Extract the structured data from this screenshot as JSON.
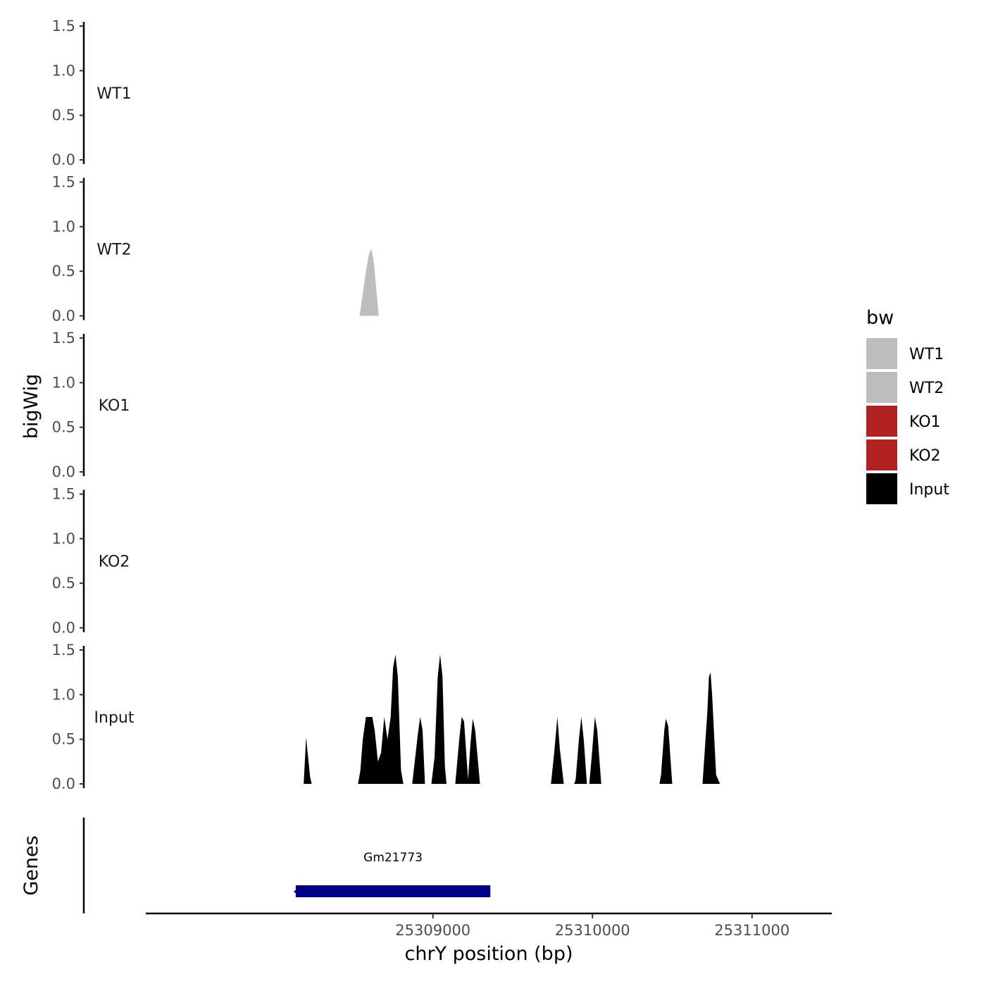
{
  "chart_data": {
    "type": "area",
    "ylabel": "bigWig",
    "xlabel": "chrY position (bp)",
    "genes_label": "Genes",
    "xlim": [
      25307200,
      25311500
    ],
    "x_ticks": [
      25309000,
      25310000,
      25311000
    ],
    "ylim": [
      0,
      1.5
    ],
    "y_ticks": [
      "0.0",
      "0.5",
      "1.0",
      "1.5"
    ],
    "legend": {
      "title": "bw",
      "entries": [
        {
          "label": "WT1",
          "color": "#bebebe"
        },
        {
          "label": "WT2",
          "color": "#bebebe"
        },
        {
          "label": "KO1",
          "color": "#b22222"
        },
        {
          "label": "KO2",
          "color": "#b22222"
        },
        {
          "label": "Input",
          "color": "#000000"
        }
      ]
    },
    "tracks": [
      {
        "name": "WT1",
        "color": "#bebebe",
        "peaks": []
      },
      {
        "name": "WT2",
        "color": "#bebebe",
        "peaks": [
          [
            [
              25308540,
              0
            ],
            [
              25308580,
              0.5
            ],
            [
              25308600,
              0.7
            ],
            [
              25308615,
              0.75
            ],
            [
              25308630,
              0.6
            ],
            [
              25308660,
              0
            ]
          ]
        ]
      },
      {
        "name": "KO1",
        "color": "#b22222",
        "peaks": []
      },
      {
        "name": "KO2",
        "color": "#b22222",
        "peaks": []
      },
      {
        "name": "Input",
        "color": "#000000",
        "peaks": [
          [
            [
              25308190,
              0
            ],
            [
              25308205,
              0.52
            ],
            [
              25308230,
              0.08
            ],
            [
              25308240,
              0
            ]
          ],
          [
            [
              25308530,
              0
            ],
            [
              25308545,
              0.15
            ],
            [
              25308560,
              0.5
            ],
            [
              25308580,
              0.75
            ],
            [
              25308620,
              0.75
            ],
            [
              25308635,
              0.6
            ],
            [
              25308655,
              0.25
            ],
            [
              25308675,
              0.35
            ],
            [
              25308695,
              0.75
            ],
            [
              25308715,
              0.5
            ],
            [
              25308735,
              0.75
            ],
            [
              25308750,
              1.3
            ],
            [
              25308765,
              1.45
            ],
            [
              25308780,
              1.2
            ],
            [
              25308800,
              0.15
            ],
            [
              25308815,
              0
            ]
          ],
          [
            [
              25308870,
              0
            ],
            [
              25308905,
              0.55
            ],
            [
              25308920,
              0.75
            ],
            [
              25308935,
              0.6
            ],
            [
              25308950,
              0
            ]
          ],
          [
            [
              25308990,
              0
            ],
            [
              25309010,
              0.3
            ],
            [
              25309030,
              1.2
            ],
            [
              25309045,
              1.45
            ],
            [
              25309060,
              1.2
            ],
            [
              25309075,
              0.2
            ],
            [
              25309085,
              0
            ]
          ],
          [
            [
              25309140,
              0
            ],
            [
              25309165,
              0.5
            ],
            [
              25309180,
              0.75
            ],
            [
              25309195,
              0.7
            ],
            [
              25309220,
              0.05
            ],
            [
              25309235,
              0.45
            ],
            [
              25309250,
              0.73
            ],
            [
              25309265,
              0.6
            ],
            [
              25309295,
              0
            ]
          ],
          [
            [
              25309740,
              0
            ],
            [
              25309760,
              0.35
            ],
            [
              25309780,
              0.75
            ],
            [
              25309795,
              0.4
            ],
            [
              25309820,
              0
            ]
          ],
          [
            [
              25309885,
              0
            ],
            [
              25309895,
              0.05
            ],
            [
              25309915,
              0.5
            ],
            [
              25309930,
              0.75
            ],
            [
              25309945,
              0.5
            ],
            [
              25309965,
              0
            ]
          ],
          [
            [
              25309980,
              0
            ],
            [
              25309995,
              0.3
            ],
            [
              25310015,
              0.75
            ],
            [
              25310030,
              0.6
            ],
            [
              25310055,
              0
            ]
          ],
          [
            [
              25310420,
              0
            ],
            [
              25310430,
              0.1
            ],
            [
              25310450,
              0.6
            ],
            [
              25310460,
              0.73
            ],
            [
              25310475,
              0.65
            ],
            [
              25310500,
              0
            ]
          ],
          [
            [
              25310690,
              0
            ],
            [
              25310705,
              0.4
            ],
            [
              25310720,
              0.8
            ],
            [
              25310730,
              1.2
            ],
            [
              25310740,
              1.25
            ],
            [
              25310750,
              1.0
            ],
            [
              25310775,
              0.1
            ],
            [
              25310800,
              0
            ]
          ]
        ]
      }
    ],
    "genes": [
      {
        "name": "Gm21773",
        "start": 25308140,
        "end": 25309360,
        "strand": "-",
        "color": "#00008b"
      }
    ]
  }
}
